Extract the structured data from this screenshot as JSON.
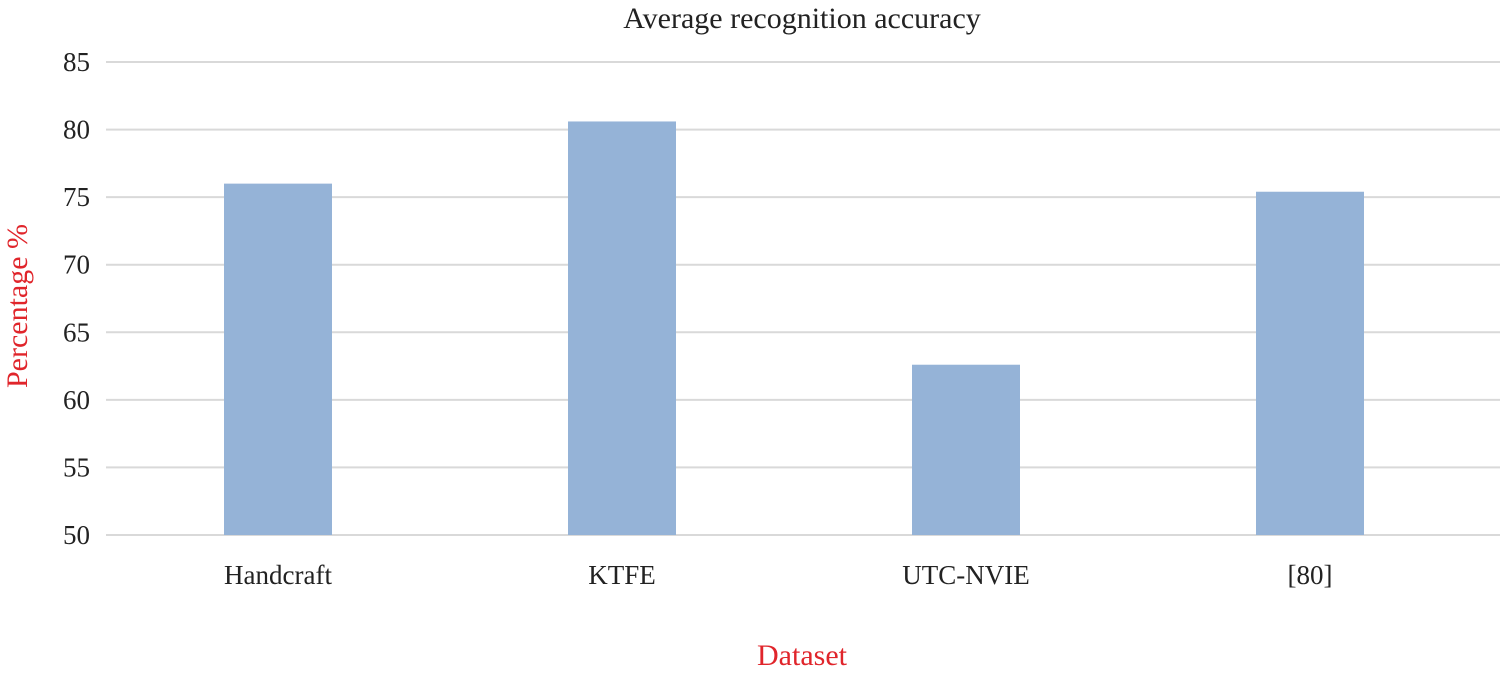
{
  "chart_data": {
    "type": "bar",
    "title": "Average recognition accuracy",
    "xlabel": "Dataset",
    "ylabel": "Percentage %",
    "categories": [
      "Handcraft",
      "KTFE",
      "UTC-NVIE",
      "[80]"
    ],
    "values": [
      76.0,
      80.6,
      62.6,
      75.4
    ],
    "ylim": [
      50,
      85
    ],
    "yticks": [
      50,
      55,
      60,
      65,
      70,
      75,
      80,
      85
    ],
    "grid": true,
    "legend": "none",
    "colors": {
      "bar": "#95b3d7",
      "axis_title": "#e0252b",
      "text": "#222222",
      "grid": "#d9d9d9"
    }
  }
}
